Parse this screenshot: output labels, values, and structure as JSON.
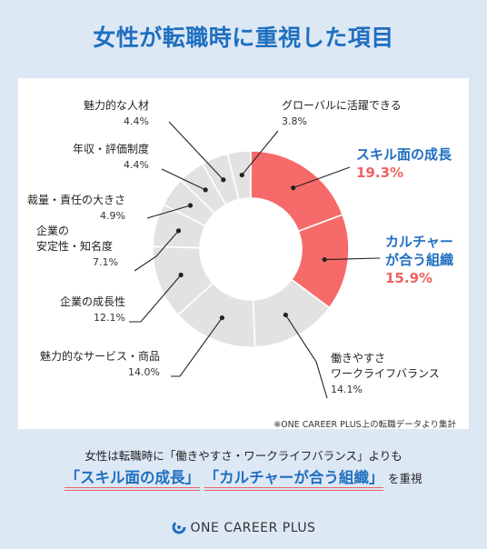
{
  "title": "女性が転職時に重視した項目",
  "chart_data": {
    "type": "pie",
    "donut": true,
    "categories": [
      "スキル面の成長",
      "カルチャーが合う組織",
      "働きやすさ ワークライフバランス",
      "魅力的なサービス・商品",
      "企業の成長性",
      "企業の 安定性・知名度",
      "裁量・責任の大きさ",
      "年収・評価制度",
      "魅力的な人材",
      "グローバルに活躍できる"
    ],
    "values": [
      19.3,
      15.9,
      14.1,
      14.0,
      12.1,
      7.1,
      4.9,
      4.4,
      4.4,
      3.8
    ],
    "highlighted": [
      "スキル面の成長",
      "カルチャーが合う組織"
    ],
    "colors": {
      "highlight": "#f76a6a",
      "other": "#e2e2e2",
      "border": "#ffffff"
    }
  },
  "labels": {
    "skill": {
      "name": "スキル面の成長",
      "pct": "19.3%"
    },
    "culture": {
      "line1": "カルチャー",
      "line2": "が合う組織",
      "pct": "15.9%"
    },
    "worklife": {
      "line1": "働きやすさ",
      "line2": "ワークライフバランス",
      "pct": "14.1%"
    },
    "service": {
      "name": "魅力的なサービス・商品",
      "pct": "14.0%"
    },
    "growth": {
      "name": "企業の成長性",
      "pct": "12.1%"
    },
    "stability": {
      "line1": "企業の",
      "line2": "安定性・知名度",
      "pct": "7.1%"
    },
    "discretion": {
      "name": "裁量・責任の大きさ",
      "pct": "4.9%"
    },
    "salary": {
      "name": "年収・評価制度",
      "pct": "4.4%"
    },
    "people": {
      "name": "魅力的な人材",
      "pct": "4.4%"
    },
    "global": {
      "name": "グローバルに活躍できる",
      "pct": "3.8%"
    }
  },
  "note": "※ONE CAREER PLUS上の転職データより集計",
  "summary": {
    "line1": "女性は転職時に「働きやすさ・ワークライフバランス」よりも",
    "hl1": "「スキル面の成長」",
    "hl2": "「カルチャーが合う組織」",
    "tail": "を重視"
  },
  "brand": "ONE CAREER PLUS"
}
